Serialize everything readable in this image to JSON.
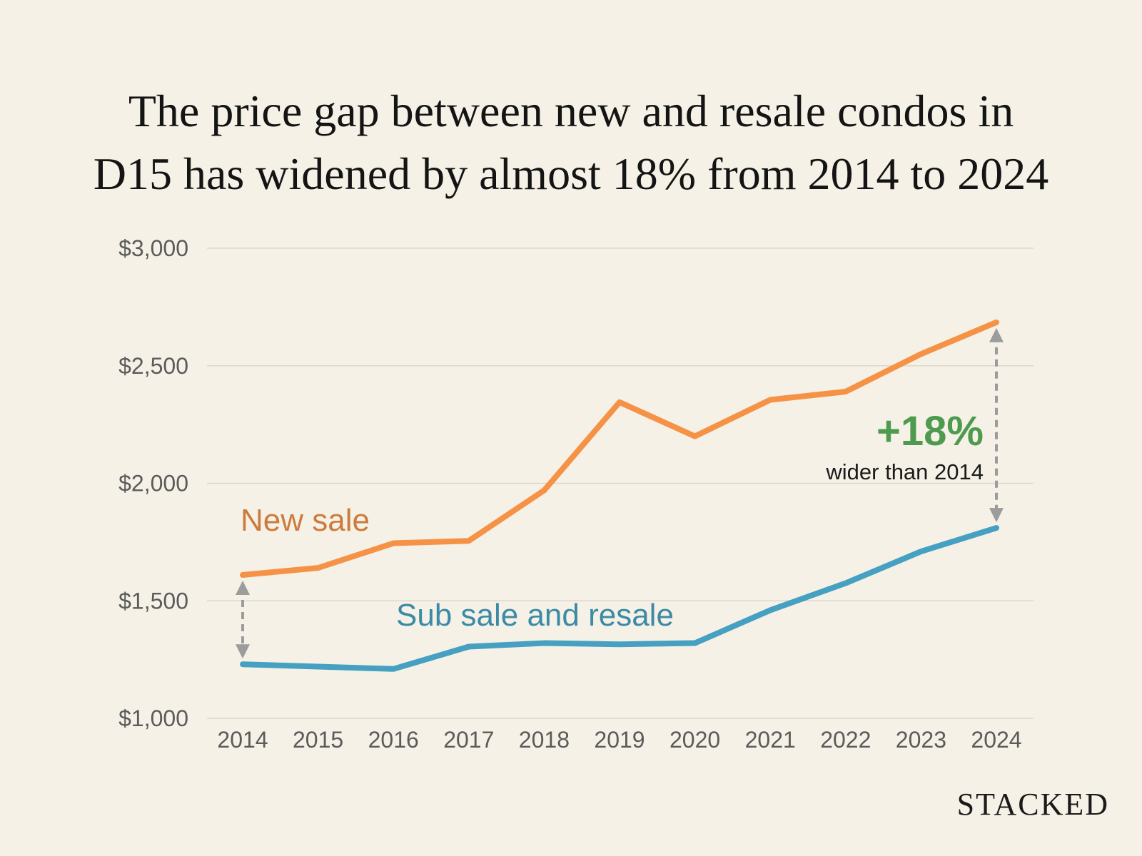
{
  "title": {
    "line1": "The price gap between new and resale condos in",
    "line2": "D15 has widened by almost 18% from 2014 to 2024"
  },
  "brand": "STACKED",
  "colors": {
    "background": "#f5f1e6",
    "new_sale": "#f59246",
    "new_sale_label": "#cd7b3c",
    "resale": "#45a0c2",
    "resale_label": "#3b8aa6",
    "gridline": "#ddd8cc",
    "arrow": "#9c9c9c",
    "highlight": "#4e9a4e"
  },
  "chart_data": {
    "type": "line",
    "title": "The price gap between new and resale condos in D15 has widened by almost 18% from 2014 to 2024",
    "xlabel": "",
    "ylabel": "",
    "categories": [
      "2014",
      "2015",
      "2016",
      "2017",
      "2018",
      "2019",
      "2020",
      "2021",
      "2022",
      "2023",
      "2024"
    ],
    "ylim": [
      1000,
      3000
    ],
    "yticks": [
      1000,
      1500,
      2000,
      2500,
      3000
    ],
    "ytick_labels": [
      "$1,000",
      "$1,500",
      "$2,000",
      "$2,500",
      "$3,000"
    ],
    "grid": true,
    "series": [
      {
        "name": "New sale",
        "values": [
          1610,
          1640,
          1745,
          1755,
          1970,
          2345,
          2200,
          2355,
          2390,
          2550,
          2685
        ]
      },
      {
        "name": "Sub sale and resale",
        "values": [
          1230,
          1220,
          1210,
          1305,
          1320,
          1315,
          1320,
          1460,
          1575,
          1710,
          1810
        ]
      }
    ],
    "annotations": [
      {
        "type": "gap-arrow",
        "category": "2014"
      },
      {
        "type": "gap-arrow",
        "category": "2024",
        "text": "+18%",
        "subtext": "wider than 2014"
      }
    ]
  }
}
